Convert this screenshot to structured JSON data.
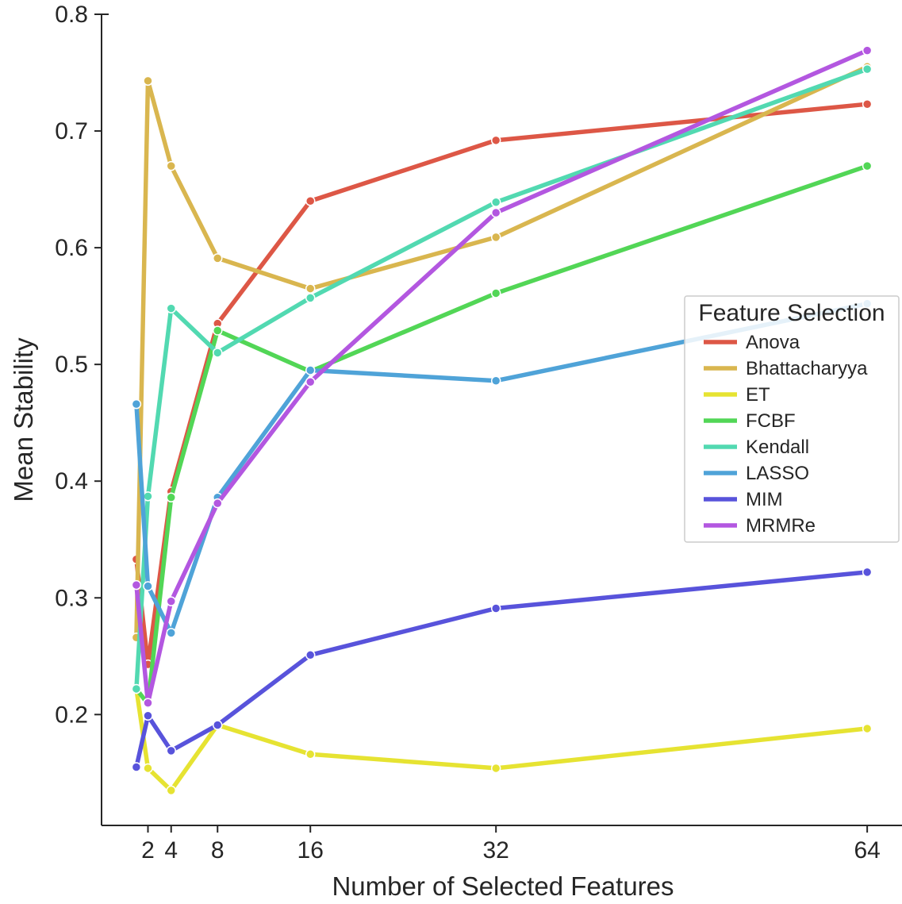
{
  "chart_data": {
    "type": "line",
    "xlabel": "Number of Selected Features",
    "ylabel": "Mean Stability",
    "xlim": [
      -2,
      67
    ],
    "ylim": [
      0.105,
      0.8
    ],
    "x_ticks": [
      2,
      4,
      8,
      16,
      32,
      64
    ],
    "x_tick_labels": [
      "2",
      "4",
      "8",
      "16",
      "32",
      "64"
    ],
    "y_ticks": [
      0.2,
      0.3,
      0.4,
      0.5,
      0.6,
      0.7,
      0.8
    ],
    "y_tick_labels": [
      "0.2",
      "0.3",
      "0.4",
      "0.5",
      "0.6",
      "0.7",
      "0.8"
    ],
    "grid": false,
    "legend": {
      "title": "Feature Selection",
      "placement": "center-right"
    },
    "x": [
      1,
      2,
      4,
      8,
      16,
      32,
      64
    ],
    "series": [
      {
        "name": "Anova",
        "color": "#dd5746",
        "values": [
          0.333,
          0.243,
          0.391,
          0.535,
          0.64,
          0.692,
          0.723
        ]
      },
      {
        "name": "Bhattacharyya",
        "color": "#d9b64f",
        "values": [
          0.266,
          0.743,
          0.67,
          0.591,
          0.565,
          0.609,
          0.755
        ]
      },
      {
        "name": "ET",
        "color": "#e6e332",
        "values": [
          0.222,
          0.154,
          0.135,
          0.191,
          0.166,
          0.154,
          0.188
        ]
      },
      {
        "name": "FCBF",
        "color": "#52d656",
        "values": [
          0.222,
          0.209,
          0.386,
          0.529,
          0.494,
          0.561,
          0.67
        ]
      },
      {
        "name": "Kendall",
        "color": "#52d9b1",
        "values": [
          0.222,
          0.387,
          0.548,
          0.51,
          0.557,
          0.639,
          0.753
        ]
      },
      {
        "name": "LASSO",
        "color": "#4fa3d8",
        "values": [
          0.466,
          0.31,
          0.27,
          0.386,
          0.495,
          0.486,
          0.552
        ]
      },
      {
        "name": "MIM",
        "color": "#5853db",
        "values": [
          0.155,
          0.199,
          0.169,
          0.191,
          0.251,
          0.291,
          0.322
        ]
      },
      {
        "name": "MRMRe",
        "color": "#b357e0",
        "values": [
          0.311,
          0.21,
          0.297,
          0.381,
          0.485,
          0.63,
          0.769
        ]
      }
    ]
  }
}
